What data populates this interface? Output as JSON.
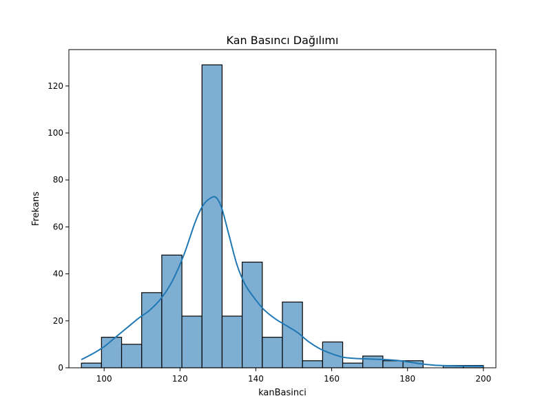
{
  "chart_data": {
    "type": "bar",
    "title": "Kan Basıncı Dağılımı",
    "xlabel": "kanBasinci",
    "ylabel": "Frekans",
    "xlim": [
      90.7,
      203.3
    ],
    "ylim": [
      0,
      135.5
    ],
    "xticks": [
      100,
      120,
      140,
      160,
      180,
      200
    ],
    "yticks": [
      0,
      20,
      40,
      60,
      80,
      100,
      120
    ],
    "grid": false,
    "legend": "none",
    "bins": [
      {
        "start": 94.0,
        "end": 99.3,
        "count": 2
      },
      {
        "start": 99.3,
        "end": 104.6,
        "count": 13
      },
      {
        "start": 104.6,
        "end": 109.9,
        "count": 10
      },
      {
        "start": 109.9,
        "end": 115.2,
        "count": 32
      },
      {
        "start": 115.2,
        "end": 120.5,
        "count": 48
      },
      {
        "start": 120.5,
        "end": 125.8,
        "count": 22
      },
      {
        "start": 125.8,
        "end": 131.1,
        "count": 129
      },
      {
        "start": 131.1,
        "end": 136.4,
        "count": 22
      },
      {
        "start": 136.4,
        "end": 141.7,
        "count": 45
      },
      {
        "start": 141.7,
        "end": 147.0,
        "count": 13
      },
      {
        "start": 147.0,
        "end": 152.3,
        "count": 28
      },
      {
        "start": 152.3,
        "end": 157.6,
        "count": 3
      },
      {
        "start": 157.6,
        "end": 162.9,
        "count": 11
      },
      {
        "start": 162.9,
        "end": 168.2,
        "count": 2
      },
      {
        "start": 168.2,
        "end": 173.5,
        "count": 5
      },
      {
        "start": 173.5,
        "end": 178.8,
        "count": 3
      },
      {
        "start": 178.8,
        "end": 184.1,
        "count": 3
      },
      {
        "start": 184.1,
        "end": 189.4,
        "count": 0
      },
      {
        "start": 189.4,
        "end": 194.7,
        "count": 1
      },
      {
        "start": 194.7,
        "end": 200.0,
        "count": 1
      }
    ],
    "kde": {
      "x": [
        94,
        97,
        100,
        103,
        106,
        109,
        112,
        115,
        118,
        121,
        124,
        126,
        128,
        129.5,
        131,
        133,
        135,
        137,
        139,
        142,
        145,
        148,
        151,
        154,
        157,
        160,
        163,
        166,
        169,
        172,
        175,
        178,
        181,
        184,
        187,
        190,
        193,
        196,
        200
      ],
      "y": [
        3.5,
        6,
        9,
        13,
        17,
        21,
        24.5,
        29.5,
        37,
        48,
        62,
        69,
        72.2,
        72.5,
        68,
        56,
        44,
        36,
        31,
        25,
        21,
        18,
        15,
        11,
        8,
        6,
        4.5,
        4,
        3.8,
        3.6,
        3.4,
        3,
        2.3,
        1.6,
        1.1,
        0.9,
        0.8,
        0.75,
        0.7
      ]
    },
    "colors": {
      "bar_fill": "#7eafd3",
      "bar_edge": "#000000",
      "kde_line": "#1f77b4"
    }
  }
}
